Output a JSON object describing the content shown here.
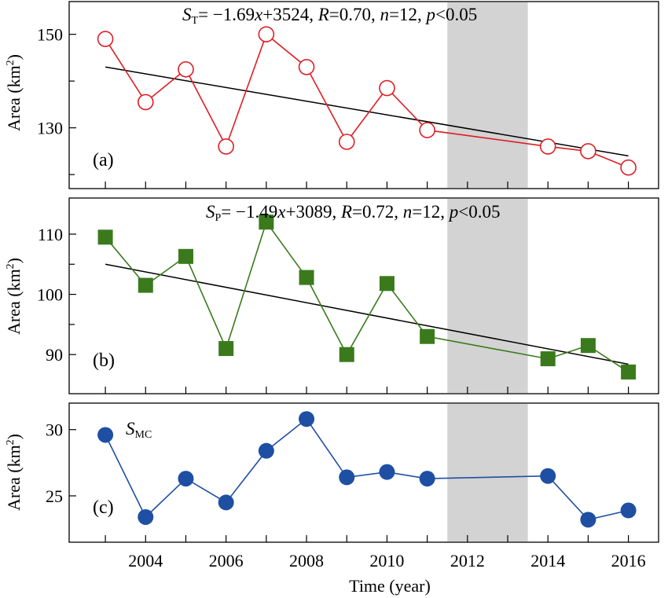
{
  "chart_data": {
    "type": "line",
    "xlabel": "Time (year)",
    "x_ticks": [
      2004,
      2006,
      2008,
      2010,
      2012,
      2014,
      2016
    ],
    "xlim": [
      2002.1,
      2016.75
    ],
    "shaded_span": [
      2011.5,
      2013.5
    ],
    "colors": {
      "shade": "#d3d3d3",
      "trend": "#000000"
    },
    "panels": [
      {
        "label": "(a)",
        "ylabel_base": "Area (km",
        "ylabel_sup": "2",
        "ylabel_end": ")",
        "ylim": [
          117,
          157
        ],
        "y_ticks": [
          130,
          150
        ],
        "y_minor_ticks": [
          120,
          140
        ],
        "marker": "open-circle",
        "color": "#dd1e24",
        "series": {
          "name": "S_T",
          "x": [
            2003,
            2004,
            2005,
            2006,
            2007,
            2008,
            2009,
            2010,
            2011,
            2014,
            2015,
            2016
          ],
          "y": [
            149,
            135.5,
            142.5,
            126,
            150,
            143,
            127,
            138.5,
            129.5,
            126,
            125,
            121.5
          ]
        },
        "trend": {
          "x": [
            2003,
            2016
          ],
          "y": [
            143,
            124
          ]
        },
        "equation": {
          "var": "S",
          "sub": "T",
          "rest": "= −1.69",
          "x": "x",
          "rest2": "+3524, ",
          "r": "R",
          "rval": "=0.70, ",
          "n": "n",
          "nval": "=12, ",
          "p": "p",
          "pval": "<0.05"
        }
      },
      {
        "label": "(b)",
        "ylabel_base": "Area (km",
        "ylabel_sup": "2",
        "ylabel_end": ")",
        "ylim": [
          83.5,
          116
        ],
        "y_ticks": [
          90,
          100,
          110
        ],
        "y_minor_ticks": [
          95,
          105
        ],
        "marker": "square",
        "color": "#3a7a1c",
        "series": {
          "name": "S_P",
          "x": [
            2003,
            2004,
            2005,
            2006,
            2007,
            2008,
            2009,
            2010,
            2011,
            2014,
            2015,
            2016
          ],
          "y": [
            109.5,
            101.5,
            106.3,
            91,
            112,
            102.8,
            90,
            101.8,
            93,
            89.3,
            91.5,
            87.1
          ]
        },
        "trend": {
          "x": [
            2003,
            2016
          ],
          "y": [
            105,
            88.4
          ]
        },
        "equation": {
          "var": "S",
          "sub": "P",
          "rest": "= −1.49",
          "x": "x",
          "rest2": "+3089, ",
          "r": "R",
          "rval": "=0.72, ",
          "n": "n",
          "nval": "=12, ",
          "p": "p",
          "pval": "<0.05"
        }
      },
      {
        "label": "(c)",
        "ylabel_base": "Area (km",
        "ylabel_sup": "2",
        "ylabel_end": ")",
        "ylim": [
          21.5,
          32
        ],
        "y_ticks": [
          25,
          30
        ],
        "y_minor_ticks": [],
        "marker": "filled-circle",
        "color": "#1e4fa3",
        "series": {
          "name": "S_MC",
          "x": [
            2003,
            2004,
            2005,
            2006,
            2007,
            2008,
            2009,
            2010,
            2011,
            2014,
            2015,
            2016
          ],
          "y": [
            29.6,
            23.4,
            26.3,
            24.5,
            28.4,
            30.8,
            26.4,
            26.8,
            26.3,
            26.5,
            23.2,
            23.9
          ]
        },
        "legend_var": "S",
        "legend_sub": "MC"
      }
    ]
  }
}
